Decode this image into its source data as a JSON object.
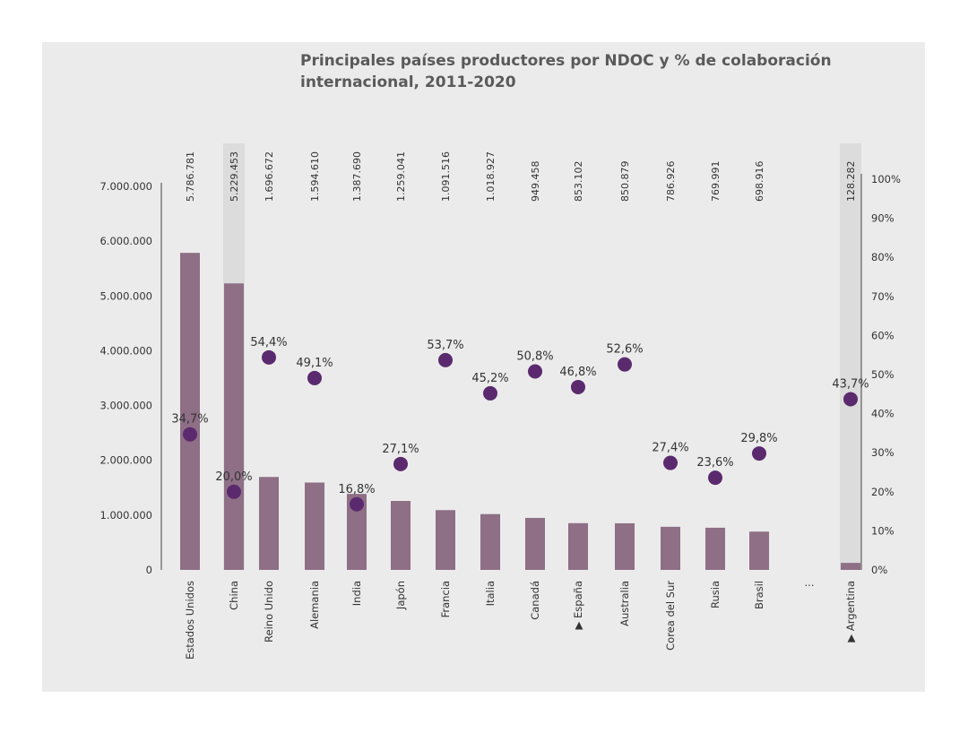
{
  "chart_data": {
    "type": "bar+scatter",
    "title_lines": [
      "Principales países productores por NDOC y % de colaboración",
      "internacional, 2011-2020"
    ],
    "categories": [
      "Estados Unidos",
      "China",
      "Reino Unido",
      "Alemania",
      "India",
      "Japón",
      "Francia",
      "Italia",
      "Canadá",
      "España",
      "Australia",
      "Corea del Sur",
      "Rusia",
      "Brasil",
      "Argentina"
    ],
    "highlighted": [
      "España",
      "Argentina"
    ],
    "highlight_marker": "▶",
    "ellipsis": "...",
    "series": [
      {
        "type": "bar",
        "axis": "left",
        "values": [
          5786781,
          5229453,
          1696672,
          1594610,
          1387690,
          1259041,
          1091516,
          1018927,
          949458,
          853102,
          850879,
          786926,
          769991,
          698916,
          128282
        ],
        "labels": [
          "5.786.781",
          "5.229.453",
          "1.696.672",
          "1.594.610",
          "1.387.690",
          "1.259.041",
          "1.091.516",
          "1.018.927",
          "949.458",
          "853.102",
          "850.879",
          "786.926",
          "769.991",
          "698.916",
          "128.282"
        ]
      },
      {
        "type": "scatter",
        "axis": "right",
        "values": [
          34.7,
          20.0,
          54.4,
          49.1,
          16.8,
          27.1,
          53.7,
          45.2,
          50.8,
          46.8,
          52.6,
          27.4,
          23.6,
          29.8,
          43.7
        ],
        "labels": [
          "34,7%",
          "20,0%",
          "54,4%",
          "49,1%",
          "16,8%",
          "27,1%",
          "53,7%",
          "45,2%",
          "50,8%",
          "46,8%",
          "52,6%",
          "27,4%",
          "23,6%",
          "29,8%",
          "43,7%"
        ]
      }
    ],
    "left_axis": {
      "ylim": [
        0,
        7000000
      ],
      "ticks": [
        "0",
        "1.000.000",
        "2.000.000",
        "3.000.000",
        "4.000.000",
        "5.000.000",
        "6.000.000",
        "7.000.000"
      ]
    },
    "right_axis": {
      "ylim": [
        0,
        100
      ],
      "ticks": [
        "0%",
        "10%",
        "20%",
        "30%",
        "40%",
        "50%",
        "60%",
        "70%",
        "80%",
        "90%",
        "100%"
      ]
    },
    "grid": false,
    "colors": {
      "bar": "#8e6f86",
      "dot": "#5b2a6e",
      "highlight_column": "#dcdcdc",
      "highlight_text": "#9a7a93"
    }
  }
}
